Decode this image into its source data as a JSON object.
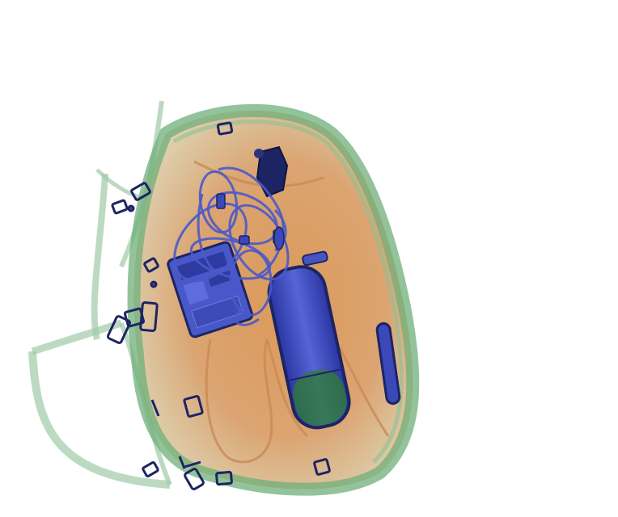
{
  "image": {
    "subject": "x-ray-baggage-scan",
    "background_color": "#ffffff",
    "colors": {
      "organic_orange": "#d08a4a",
      "organic_light": "#e2b183",
      "mixed_green": "#4f9a5a",
      "mixed_light_green": "#b9d9bd",
      "metal_blue": "#3a48b8",
      "metal_dark": "#1d2463",
      "cylinder_green": "#2f7d2f"
    },
    "objects": [
      "bag-shell",
      "cable-bundle",
      "electronic-device",
      "pressurized-cylinder",
      "dark-metal-object",
      "side-rod",
      "buckles",
      "bag-straps"
    ]
  }
}
